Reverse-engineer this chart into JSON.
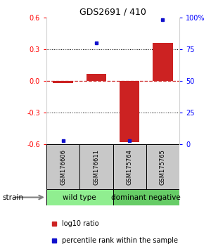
{
  "title": "GDS2691 / 410",
  "samples": [
    "GSM176606",
    "GSM176611",
    "GSM175764",
    "GSM175765"
  ],
  "log10_ratio": [
    -0.02,
    0.07,
    -0.58,
    0.36
  ],
  "percentile_rank": [
    3,
    80,
    3,
    98
  ],
  "groups": [
    {
      "label": "wild type",
      "samples_idx": [
        0,
        1
      ],
      "color": "#90EE90"
    },
    {
      "label": "dominant negative",
      "samples_idx": [
        2,
        3
      ],
      "color": "#66CC66"
    }
  ],
  "ylim_left": [
    -0.6,
    0.6
  ],
  "ylim_right": [
    0,
    100
  ],
  "yticks_left": [
    -0.6,
    -0.3,
    0.0,
    0.3,
    0.6
  ],
  "yticks_right": [
    0,
    25,
    50,
    75,
    100
  ],
  "ytick_labels_right": [
    "0",
    "25",
    "50",
    "75",
    "100%"
  ],
  "bar_color": "#CC2222",
  "dot_color": "#1111CC",
  "hline_color": "#CC2222",
  "background_color": "#ffffff",
  "label_red": "log10 ratio",
  "label_blue": "percentile rank within the sample",
  "gray_color": "#C8C8C8",
  "group0_color": "#90EE90",
  "group1_color": "#66CC66"
}
